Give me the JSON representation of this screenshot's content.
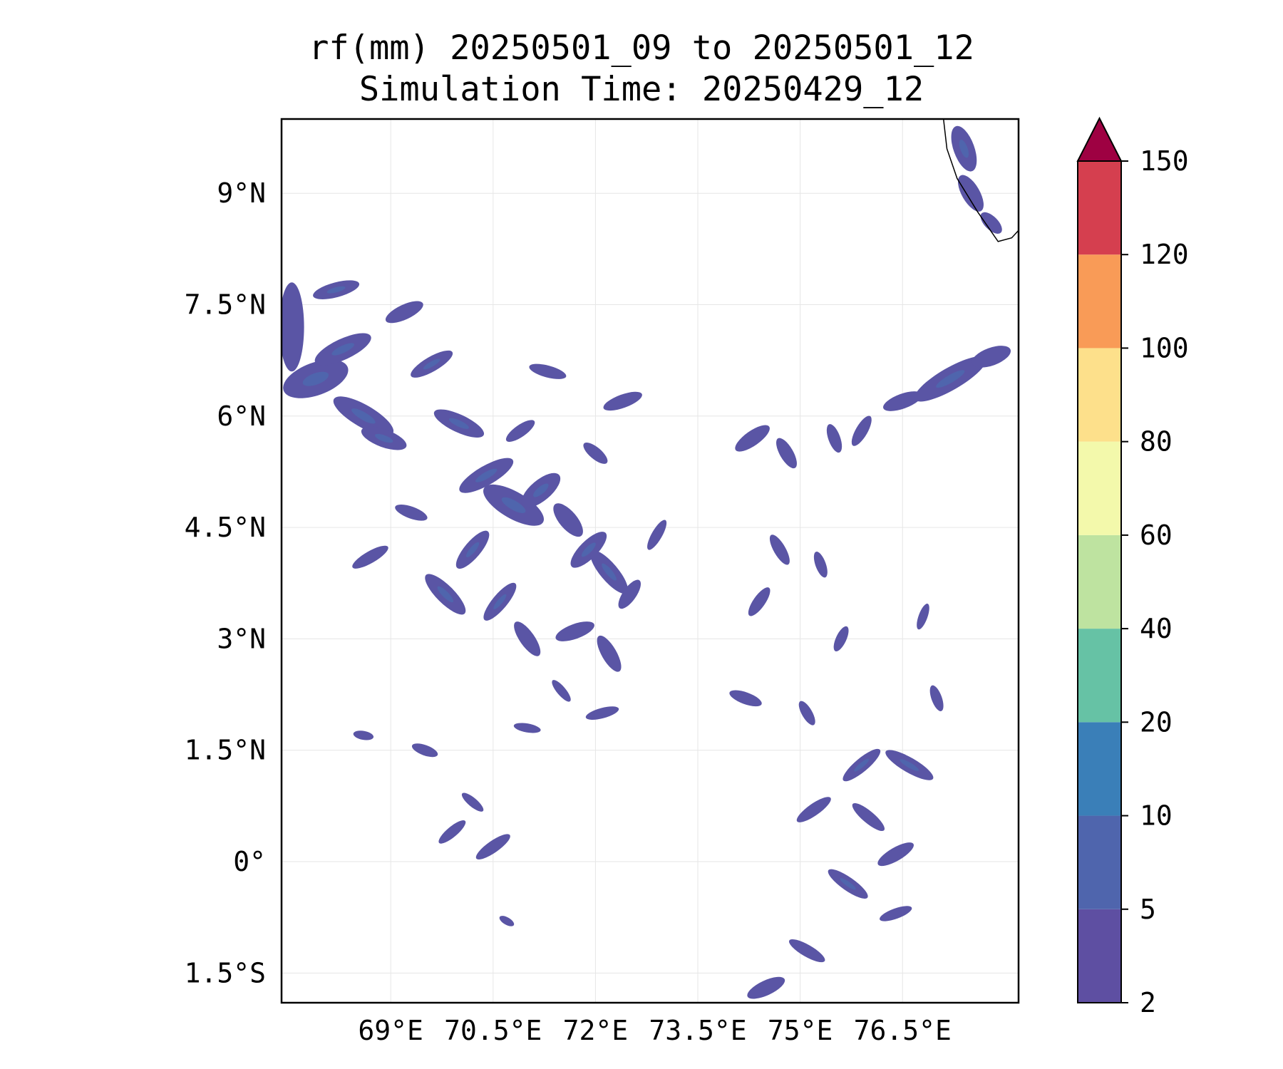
{
  "title": {
    "line1": "rf(mm) 20250501_09 to 20250501_12",
    "line2": "Simulation Time: 20250429_12"
  },
  "map": {
    "lon_range": [
      67.4,
      78.2
    ],
    "lat_range": [
      -1.9,
      10.0
    ],
    "lon_ticks": [
      {
        "value": 69.0,
        "label": "69°E"
      },
      {
        "value": 70.5,
        "label": "70.5°E"
      },
      {
        "value": 72.0,
        "label": "72°E"
      },
      {
        "value": 73.5,
        "label": "73.5°E"
      },
      {
        "value": 75.0,
        "label": "75°E"
      },
      {
        "value": 76.5,
        "label": "76.5°E"
      }
    ],
    "lat_ticks": [
      {
        "value": 9.0,
        "label": "9°N"
      },
      {
        "value": 7.5,
        "label": "7.5°N"
      },
      {
        "value": 6.0,
        "label": "6°N"
      },
      {
        "value": 4.5,
        "label": "4.5°N"
      },
      {
        "value": 3.0,
        "label": "3°N"
      },
      {
        "value": 1.5,
        "label": "1.5°N"
      },
      {
        "value": 0.0,
        "label": "0°"
      },
      {
        "value": -1.5,
        "label": "1.5°S"
      }
    ],
    "grid": true,
    "coastline_india_tip": [
      [
        77.1,
        10.0
      ],
      [
        77.15,
        9.6
      ],
      [
        77.3,
        9.2
      ],
      [
        77.6,
        8.75
      ],
      [
        77.9,
        8.35
      ],
      [
        78.1,
        8.4
      ],
      [
        78.2,
        8.5
      ]
    ],
    "rain_fill_color": "#5a55a5",
    "rain_core_color": "#4f65ad",
    "rain_patches": [
      {
        "lon": 67.55,
        "lat": 7.2,
        "rx": 0.18,
        "ry": 0.6,
        "angle": 0
      },
      {
        "lon": 67.9,
        "lat": 6.5,
        "rx": 0.5,
        "ry": 0.22,
        "angle": -20
      },
      {
        "lon": 68.3,
        "lat": 6.9,
        "rx": 0.45,
        "ry": 0.14,
        "angle": -25
      },
      {
        "lon": 68.6,
        "lat": 6.0,
        "rx": 0.5,
        "ry": 0.15,
        "angle": 30
      },
      {
        "lon": 68.9,
        "lat": 5.7,
        "rx": 0.35,
        "ry": 0.12,
        "angle": 20
      },
      {
        "lon": 68.2,
        "lat": 7.7,
        "rx": 0.35,
        "ry": 0.1,
        "angle": -15
      },
      {
        "lon": 69.2,
        "lat": 7.4,
        "rx": 0.3,
        "ry": 0.1,
        "angle": -25
      },
      {
        "lon": 69.6,
        "lat": 6.7,
        "rx": 0.35,
        "ry": 0.1,
        "angle": -30
      },
      {
        "lon": 70.0,
        "lat": 5.9,
        "rx": 0.4,
        "ry": 0.12,
        "angle": 25
      },
      {
        "lon": 70.4,
        "lat": 5.2,
        "rx": 0.45,
        "ry": 0.13,
        "angle": -30
      },
      {
        "lon": 70.8,
        "lat": 4.8,
        "rx": 0.5,
        "ry": 0.18,
        "angle": 30
      },
      {
        "lon": 71.2,
        "lat": 5.0,
        "rx": 0.35,
        "ry": 0.14,
        "angle": -40
      },
      {
        "lon": 71.6,
        "lat": 4.6,
        "rx": 0.3,
        "ry": 0.12,
        "angle": 50
      },
      {
        "lon": 71.9,
        "lat": 4.2,
        "rx": 0.35,
        "ry": 0.12,
        "angle": -45
      },
      {
        "lon": 72.2,
        "lat": 3.9,
        "rx": 0.4,
        "ry": 0.12,
        "angle": 50
      },
      {
        "lon": 70.2,
        "lat": 4.2,
        "rx": 0.35,
        "ry": 0.11,
        "angle": -50
      },
      {
        "lon": 69.8,
        "lat": 3.6,
        "rx": 0.4,
        "ry": 0.12,
        "angle": 45
      },
      {
        "lon": 70.6,
        "lat": 3.5,
        "rx": 0.35,
        "ry": 0.1,
        "angle": -50
      },
      {
        "lon": 71.0,
        "lat": 3.0,
        "rx": 0.3,
        "ry": 0.1,
        "angle": 55
      },
      {
        "lon": 71.7,
        "lat": 3.1,
        "rx": 0.3,
        "ry": 0.1,
        "angle": -20
      },
      {
        "lon": 72.2,
        "lat": 2.8,
        "rx": 0.3,
        "ry": 0.1,
        "angle": 60
      },
      {
        "lon": 72.5,
        "lat": 3.6,
        "rx": 0.25,
        "ry": 0.09,
        "angle": -55
      },
      {
        "lon": 68.7,
        "lat": 4.1,
        "rx": 0.3,
        "ry": 0.08,
        "angle": -30
      },
      {
        "lon": 69.3,
        "lat": 4.7,
        "rx": 0.25,
        "ry": 0.08,
        "angle": 20
      },
      {
        "lon": 72.4,
        "lat": 6.2,
        "rx": 0.3,
        "ry": 0.09,
        "angle": -20
      },
      {
        "lon": 71.3,
        "lat": 6.6,
        "rx": 0.28,
        "ry": 0.08,
        "angle": 15
      },
      {
        "lon": 70.9,
        "lat": 5.8,
        "rx": 0.25,
        "ry": 0.08,
        "angle": -35
      },
      {
        "lon": 72.0,
        "lat": 5.5,
        "rx": 0.22,
        "ry": 0.08,
        "angle": 40
      },
      {
        "lon": 72.9,
        "lat": 4.4,
        "rx": 0.25,
        "ry": 0.07,
        "angle": -60
      },
      {
        "lon": 69.5,
        "lat": 1.5,
        "rx": 0.2,
        "ry": 0.07,
        "angle": 20
      },
      {
        "lon": 68.6,
        "lat": 1.7,
        "rx": 0.15,
        "ry": 0.06,
        "angle": 10
      },
      {
        "lon": 69.9,
        "lat": 0.4,
        "rx": 0.25,
        "ry": 0.07,
        "angle": -40
      },
      {
        "lon": 70.5,
        "lat": 0.2,
        "rx": 0.3,
        "ry": 0.08,
        "angle": -35
      },
      {
        "lon": 70.2,
        "lat": 0.8,
        "rx": 0.2,
        "ry": 0.06,
        "angle": 40
      },
      {
        "lon": 71.0,
        "lat": 1.8,
        "rx": 0.2,
        "ry": 0.06,
        "angle": 10
      },
      {
        "lon": 72.1,
        "lat": 2.0,
        "rx": 0.25,
        "ry": 0.07,
        "angle": -15
      },
      {
        "lon": 71.5,
        "lat": 2.3,
        "rx": 0.2,
        "ry": 0.06,
        "angle": 50
      },
      {
        "lon": 70.7,
        "lat": -0.8,
        "rx": 0.12,
        "ry": 0.05,
        "angle": 30
      },
      {
        "lon": 74.3,
        "lat": 5.7,
        "rx": 0.3,
        "ry": 0.1,
        "angle": -35
      },
      {
        "lon": 74.8,
        "lat": 5.5,
        "rx": 0.25,
        "ry": 0.09,
        "angle": 60
      },
      {
        "lon": 75.5,
        "lat": 5.7,
        "rx": 0.22,
        "ry": 0.08,
        "angle": 70
      },
      {
        "lon": 75.9,
        "lat": 5.8,
        "rx": 0.25,
        "ry": 0.08,
        "angle": -60
      },
      {
        "lon": 76.5,
        "lat": 6.2,
        "rx": 0.3,
        "ry": 0.1,
        "angle": -20
      },
      {
        "lon": 77.2,
        "lat": 6.5,
        "rx": 0.6,
        "ry": 0.15,
        "angle": -30
      },
      {
        "lon": 77.8,
        "lat": 6.8,
        "rx": 0.3,
        "ry": 0.12,
        "angle": -20
      },
      {
        "lon": 74.7,
        "lat": 4.2,
        "rx": 0.25,
        "ry": 0.08,
        "angle": 60
      },
      {
        "lon": 74.4,
        "lat": 3.5,
        "rx": 0.25,
        "ry": 0.08,
        "angle": -55
      },
      {
        "lon": 75.3,
        "lat": 4.0,
        "rx": 0.2,
        "ry": 0.07,
        "angle": 70
      },
      {
        "lon": 75.6,
        "lat": 3.0,
        "rx": 0.2,
        "ry": 0.07,
        "angle": -65
      },
      {
        "lon": 74.2,
        "lat": 2.2,
        "rx": 0.25,
        "ry": 0.08,
        "angle": 20
      },
      {
        "lon": 75.1,
        "lat": 2.0,
        "rx": 0.2,
        "ry": 0.07,
        "angle": 60
      },
      {
        "lon": 75.9,
        "lat": 1.3,
        "rx": 0.35,
        "ry": 0.09,
        "angle": -40
      },
      {
        "lon": 76.6,
        "lat": 1.3,
        "rx": 0.4,
        "ry": 0.1,
        "angle": 30
      },
      {
        "lon": 75.2,
        "lat": 0.7,
        "rx": 0.3,
        "ry": 0.08,
        "angle": -35
      },
      {
        "lon": 76.0,
        "lat": 0.6,
        "rx": 0.3,
        "ry": 0.08,
        "angle": 40
      },
      {
        "lon": 76.4,
        "lat": 0.1,
        "rx": 0.3,
        "ry": 0.09,
        "angle": -30
      },
      {
        "lon": 75.7,
        "lat": -0.3,
        "rx": 0.35,
        "ry": 0.09,
        "angle": 35
      },
      {
        "lon": 76.4,
        "lat": -0.7,
        "rx": 0.25,
        "ry": 0.07,
        "angle": -20
      },
      {
        "lon": 75.1,
        "lat": -1.2,
        "rx": 0.3,
        "ry": 0.08,
        "angle": 30
      },
      {
        "lon": 74.5,
        "lat": -1.7,
        "rx": 0.3,
        "ry": 0.1,
        "angle": -25
      },
      {
        "lon": 77.0,
        "lat": 2.2,
        "rx": 0.2,
        "ry": 0.07,
        "angle": 70
      },
      {
        "lon": 76.8,
        "lat": 3.3,
        "rx": 0.2,
        "ry": 0.06,
        "angle": -70
      },
      {
        "lon": 77.4,
        "lat": 9.6,
        "rx": 0.35,
        "ry": 0.14,
        "angle": 70
      },
      {
        "lon": 77.5,
        "lat": 9.0,
        "rx": 0.3,
        "ry": 0.12,
        "angle": 60
      },
      {
        "lon": 77.8,
        "lat": 8.6,
        "rx": 0.2,
        "ry": 0.09,
        "angle": 45
      }
    ]
  },
  "colorbar": {
    "levels": [
      "2",
      "5",
      "10",
      "20",
      "40",
      "60",
      "80",
      "100",
      "120",
      "150"
    ],
    "colors": [
      "#5e4fa2",
      "#4f65ad",
      "#3a7fb8",
      "#66c2a5",
      "#bee3a0",
      "#f3f9ab",
      "#fde08b",
      "#f99b57",
      "#d53f4f"
    ],
    "extend_color": "#9e0142"
  }
}
